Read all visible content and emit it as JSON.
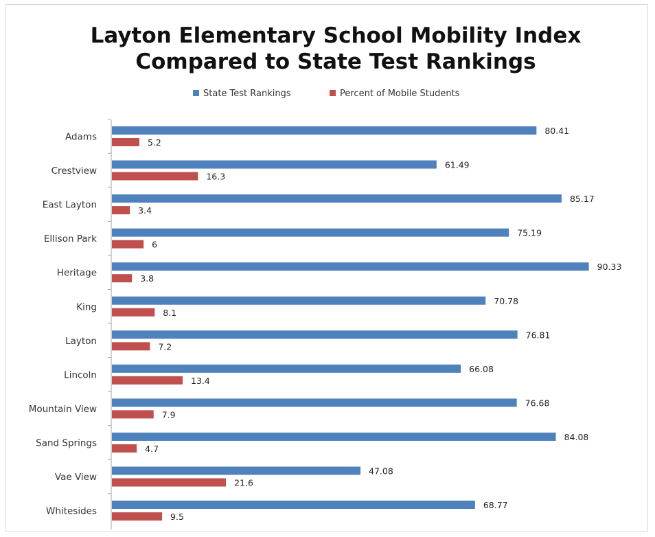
{
  "chart_data": {
    "type": "bar",
    "orientation": "horizontal",
    "title": "Layton Elementary School Mobility Index Compared to State Test Rankings",
    "title_lines": [
      "Layton Elementary School Mobility Index",
      "Compared to State Test Rankings"
    ],
    "categories": [
      "Adams",
      "Crestview",
      "East Layton",
      "Ellison Park",
      "Heritage",
      "King",
      "Layton",
      "Lincoln",
      "Mountain View",
      "Sand Springs",
      "Vae View",
      "Whitesides"
    ],
    "series": [
      {
        "name": "State Test Rankings",
        "color": "#4f81bd",
        "values": [
          80.41,
          61.49,
          85.17,
          75.19,
          90.33,
          70.78,
          76.81,
          66.08,
          76.68,
          84.08,
          47.08,
          68.77
        ],
        "labels": [
          "80.41",
          "61.49",
          "85.17",
          "75.19",
          "90.33",
          "70.78",
          "76.81",
          "66.08",
          "76.68",
          "84.08",
          "47.08",
          "68.77"
        ]
      },
      {
        "name": "Percent of Mobile Students",
        "color": "#c0504d",
        "values": [
          5.2,
          16.3,
          3.4,
          6,
          3.8,
          8.1,
          7.2,
          13.4,
          7.9,
          4.7,
          21.6,
          9.5
        ],
        "labels": [
          "5.2",
          "16.3",
          "3.4",
          "6",
          "3.8",
          "8.1",
          "7.2",
          "13.4",
          "7.9",
          "4.7",
          "21.6",
          "9.5"
        ]
      }
    ],
    "xlim": [
      0,
      100
    ],
    "grid": false,
    "legend": "top-center",
    "data_labels": true
  }
}
